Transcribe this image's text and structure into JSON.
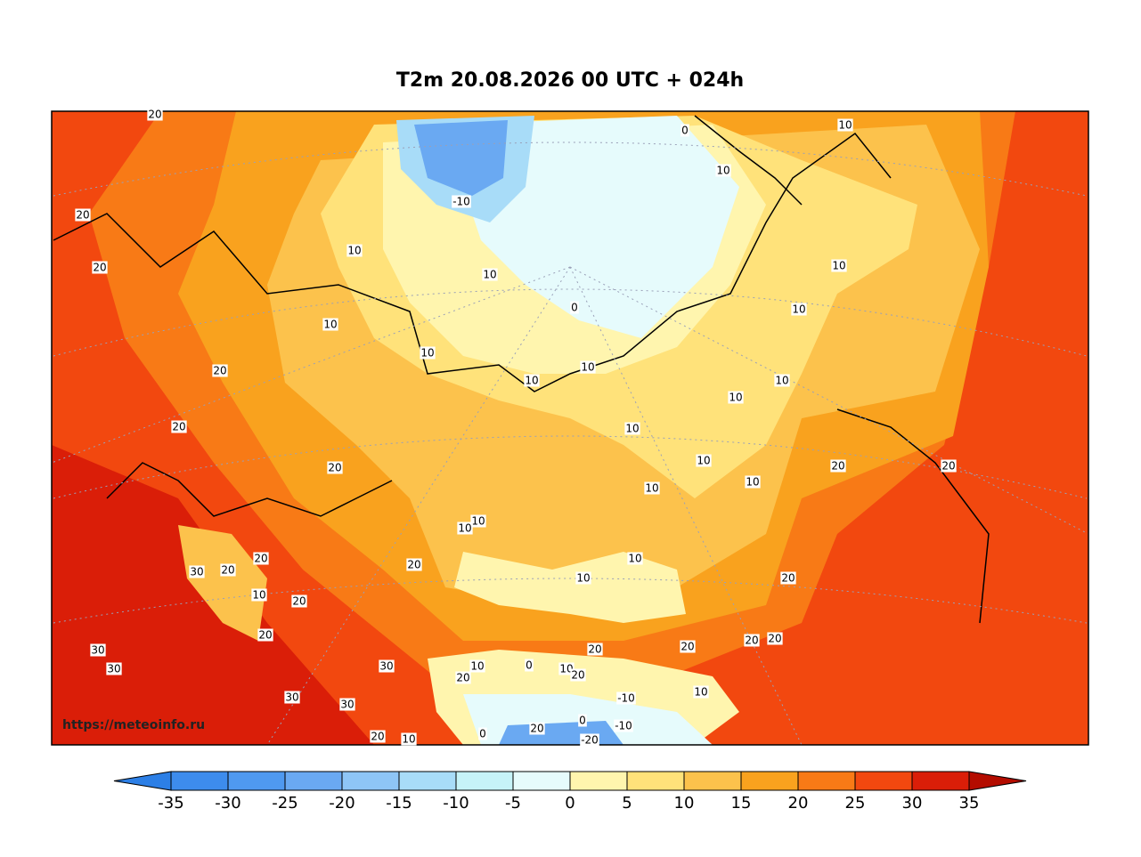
{
  "title": "T2m 20.08.2026 00 UTC + 024h",
  "watermark": "https://meteoinfo.ru",
  "contour_labels": [
    20,
    10,
    0,
    10,
    -10,
    20,
    10,
    20,
    10,
    10,
    0,
    10,
    10,
    10,
    20,
    10,
    10,
    10,
    10,
    20,
    10,
    10,
    20,
    20,
    20,
    10,
    10,
    10,
    10,
    20,
    10,
    20,
    30,
    20,
    10,
    20,
    10,
    20,
    20,
    20,
    20,
    20,
    20,
    30,
    30,
    30,
    10,
    0,
    10,
    20,
    20,
    10,
    -10,
    30,
    30,
    0,
    -10,
    20,
    20,
    10,
    0,
    -20
  ],
  "colorbar": {
    "ticks": [
      -35,
      -30,
      -25,
      -20,
      -15,
      -10,
      -5,
      0,
      5,
      10,
      15,
      20,
      25,
      30,
      35
    ],
    "colors": [
      "#2c7fe6",
      "#3d8ced",
      "#4f99f0",
      "#6aa9f2",
      "#8ec5f6",
      "#a8dcf8",
      "#c6f3f8",
      "#e6fbfc",
      "#fff5ae",
      "#ffe27a",
      "#fcc24c",
      "#f9a21e",
      "#f87a16",
      "#f2480f",
      "#da1e08",
      "#b40c00"
    ],
    "extend": "both"
  }
}
